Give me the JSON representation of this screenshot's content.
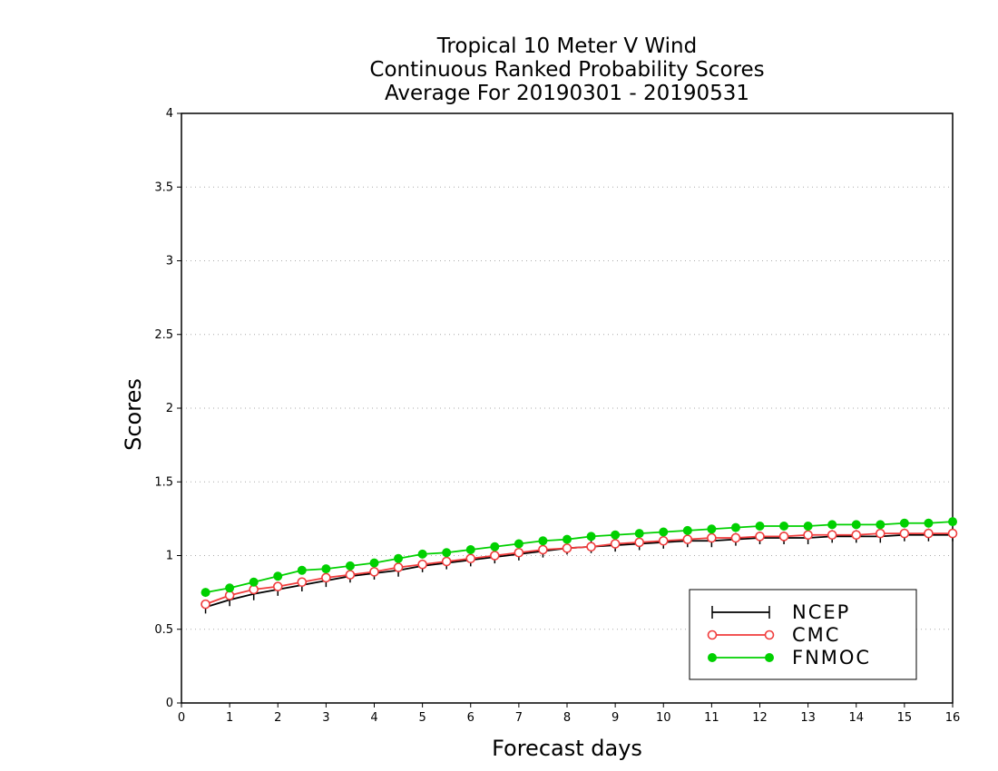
{
  "chart_data": {
    "type": "line",
    "title_lines": [
      "Tropical 10 Meter V Wind",
      "Continuous Ranked Probability Scores",
      "Average For 20190301 - 20190531"
    ],
    "xlabel": "Forecast days",
    "ylabel": "Scores",
    "xlim": [
      0,
      16
    ],
    "ylim": [
      0,
      4
    ],
    "x_ticks": [
      "0",
      "1",
      "2",
      "3",
      "4",
      "5",
      "6",
      "7",
      "8",
      "9",
      "10",
      "11",
      "12",
      "13",
      "14",
      "15",
      "16"
    ],
    "y_ticks": [
      "0",
      "0.5",
      "1",
      "1.5",
      "2",
      "2.5",
      "3",
      "3.5",
      "4"
    ],
    "grid": "horizontal dotted",
    "legend_position": "bottom-right",
    "x": [
      0.5,
      1,
      1.5,
      2,
      2.5,
      3,
      3.5,
      4,
      4.5,
      5,
      5.5,
      6,
      6.5,
      7,
      7.5,
      8,
      8.5,
      9,
      9.5,
      10,
      10.5,
      11,
      11.5,
      12,
      12.5,
      13,
      13.5,
      14,
      14.5,
      15,
      15.5,
      16
    ],
    "series": [
      {
        "name": "NCEP",
        "color": "#000000",
        "marker": "plus",
        "values": [
          0.65,
          0.7,
          0.74,
          0.77,
          0.8,
          0.83,
          0.86,
          0.88,
          0.9,
          0.93,
          0.95,
          0.97,
          0.99,
          1.01,
          1.03,
          1.05,
          1.06,
          1.07,
          1.08,
          1.09,
          1.1,
          1.1,
          1.11,
          1.12,
          1.12,
          1.12,
          1.13,
          1.13,
          1.13,
          1.14,
          1.14,
          1.14
        ]
      },
      {
        "name": "CMC",
        "color": "#f03c3c",
        "marker": "open-circle",
        "values": [
          0.67,
          0.73,
          0.77,
          0.79,
          0.82,
          0.85,
          0.87,
          0.89,
          0.92,
          0.94,
          0.96,
          0.98,
          1.0,
          1.02,
          1.04,
          1.05,
          1.06,
          1.08,
          1.09,
          1.1,
          1.11,
          1.12,
          1.12,
          1.13,
          1.13,
          1.14,
          1.14,
          1.14,
          1.15,
          1.15,
          1.15,
          1.15
        ]
      },
      {
        "name": "FNMOC",
        "color": "#00d000",
        "marker": "filled-circle",
        "values": [
          0.75,
          0.78,
          0.82,
          0.86,
          0.9,
          0.91,
          0.93,
          0.95,
          0.98,
          1.01,
          1.02,
          1.04,
          1.06,
          1.08,
          1.1,
          1.11,
          1.13,
          1.14,
          1.15,
          1.16,
          1.17,
          1.18,
          1.19,
          1.2,
          1.2,
          1.2,
          1.21,
          1.21,
          1.21,
          1.22,
          1.22,
          1.23
        ]
      }
    ]
  }
}
